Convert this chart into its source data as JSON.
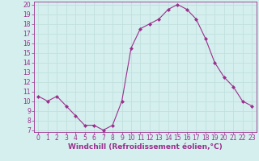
{
  "x": [
    0,
    1,
    2,
    3,
    4,
    5,
    6,
    7,
    8,
    9,
    10,
    11,
    12,
    13,
    14,
    15,
    16,
    17,
    18,
    19,
    20,
    21,
    22,
    23
  ],
  "y": [
    10.5,
    10.0,
    10.5,
    9.5,
    8.5,
    7.5,
    7.5,
    7.0,
    7.5,
    10.0,
    15.5,
    17.5,
    18.0,
    18.5,
    19.5,
    20.0,
    19.5,
    18.5,
    16.5,
    14.0,
    12.5,
    11.5,
    10.0,
    9.5
  ],
  "line_color": "#9b2f8e",
  "marker": "D",
  "marker_size": 2,
  "bg_color": "#d4efed",
  "grid_color": "#c0e0de",
  "xlabel": "Windchill (Refroidissement éolien,°C)",
  "xlabel_color": "#9b2f8e",
  "xlabel_fontsize": 6.5,
  "tick_color": "#9b2f8e",
  "tick_fontsize": 5.5,
  "ylim": [
    7,
    20
  ],
  "xlim": [
    -0.5,
    23.5
  ],
  "yticks": [
    7,
    8,
    9,
    10,
    11,
    12,
    13,
    14,
    15,
    16,
    17,
    18,
    19,
    20
  ],
  "xticks": [
    0,
    1,
    2,
    3,
    4,
    5,
    6,
    7,
    8,
    9,
    10,
    11,
    12,
    13,
    14,
    15,
    16,
    17,
    18,
    19,
    20,
    21,
    22,
    23
  ]
}
